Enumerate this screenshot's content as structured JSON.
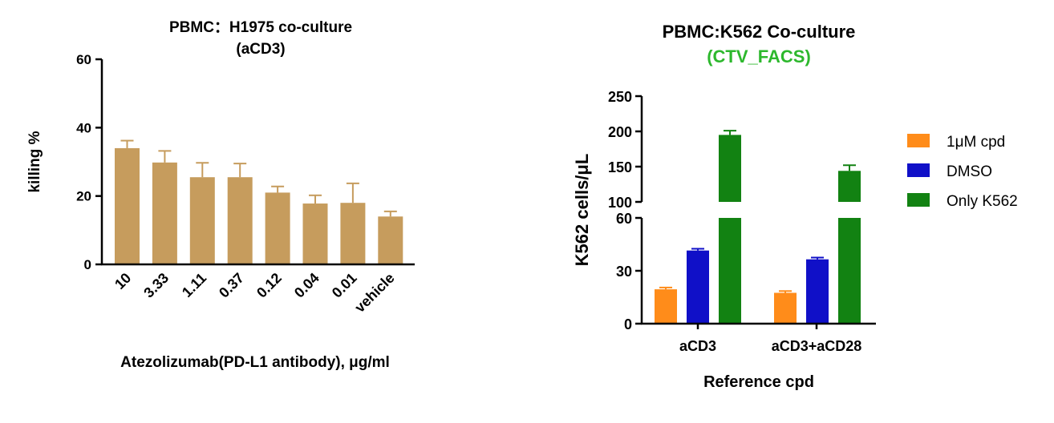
{
  "colors": {
    "tan": "#C69C5D",
    "orange": "#FF8C1A",
    "blue": "#1010C8",
    "green": "#128212",
    "green_title": "#2DB82D",
    "axis": "#000000"
  },
  "chart_data": [
    {
      "type": "bar",
      "title": "PBMC：H1975 co-culture",
      "subtitle": "(aCD3)",
      "xlabel": "Atezolizumab(PD-L1 antibody), μg/ml",
      "ylabel": "killing %",
      "ylim": [
        0,
        60
      ],
      "yticks": [
        "0",
        "20",
        "40",
        "60"
      ],
      "categories": [
        "10",
        "3.33",
        "1.11",
        "0.37",
        "0.12",
        "0.04",
        "0.01",
        "vehicle"
      ],
      "values": [
        34,
        29.8,
        25.5,
        25.5,
        21,
        17.8,
        18,
        14
      ],
      "errors": [
        2.2,
        3.4,
        4.2,
        4,
        1.8,
        2.4,
        5.7,
        1.5
      ],
      "grid": false,
      "legend": "none"
    },
    {
      "type": "bar",
      "title": "PBMC:K562 Co-culture",
      "subtitle": "(CTV_FACS)",
      "xlabel": "Reference cpd",
      "ylabel": "K562 cells/μL",
      "y_axis_break": true,
      "ylim_lower": [
        0,
        60
      ],
      "ylim_upper": [
        100,
        250
      ],
      "yticks_lower": [
        "0",
        "30",
        "60"
      ],
      "yticks_upper": [
        "100",
        "150",
        "200",
        "250"
      ],
      "categories": [
        "aCD3",
        "aCD3+aCD28"
      ],
      "series": [
        {
          "name": "1μM cpd",
          "values": [
            19.5,
            17.5
          ],
          "errors": [
            1,
            1
          ]
        },
        {
          "name": "DMSO",
          "values": [
            41.5,
            36.5
          ],
          "errors": [
            1,
            1
          ]
        },
        {
          "name": "Only K562",
          "values": [
            195,
            144
          ],
          "errors": [
            6,
            8
          ]
        }
      ],
      "grid": false,
      "legend": "right"
    }
  ]
}
